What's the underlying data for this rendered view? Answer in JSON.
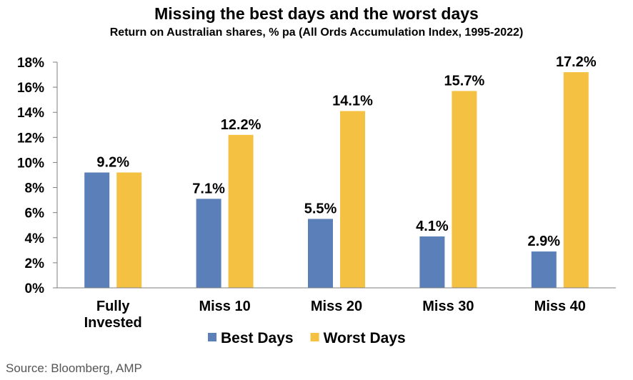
{
  "chart_data": {
    "type": "bar",
    "title": "Missing the best days and the worst days",
    "subtitle": "Return on Australian shares, % pa (All Ords Accumulation Index, 1995-2022)",
    "categories": [
      [
        "Fully",
        "Invested"
      ],
      [
        "Miss 10"
      ],
      [
        "Miss 20"
      ],
      [
        "Miss 30"
      ],
      [
        "Miss 40"
      ]
    ],
    "series": [
      {
        "name": "Best Days",
        "color": "#5a7fb9",
        "values": [
          9.2,
          7.1,
          5.5,
          4.1,
          2.9
        ]
      },
      {
        "name": "Worst Days",
        "color": "#f5c142",
        "values": [
          9.2,
          12.2,
          14.1,
          15.7,
          17.2
        ]
      }
    ],
    "data_labels": [
      {
        "category": 0,
        "series": "both",
        "text": "9.2%"
      },
      {
        "category": 1,
        "series": 0,
        "text": "7.1%"
      },
      {
        "category": 1,
        "series": 1,
        "text": "12.2%"
      },
      {
        "category": 2,
        "series": 0,
        "text": "5.5%"
      },
      {
        "category": 2,
        "series": 1,
        "text": "14.1%"
      },
      {
        "category": 3,
        "series": 0,
        "text": "4.1%"
      },
      {
        "category": 3,
        "series": 1,
        "text": "15.7%"
      },
      {
        "category": 4,
        "series": 0,
        "text": "2.9%"
      },
      {
        "category": 4,
        "series": 1,
        "text": "17.2%"
      }
    ],
    "ylim": [
      0,
      18
    ],
    "yticks": [
      "0%",
      "2%",
      "4%",
      "6%",
      "8%",
      "10%",
      "12%",
      "14%",
      "16%",
      "18%"
    ],
    "xlabel": "",
    "ylabel": "",
    "grid": false,
    "legend_position": "bottom",
    "source": "Source: Bloomberg, AMP"
  }
}
